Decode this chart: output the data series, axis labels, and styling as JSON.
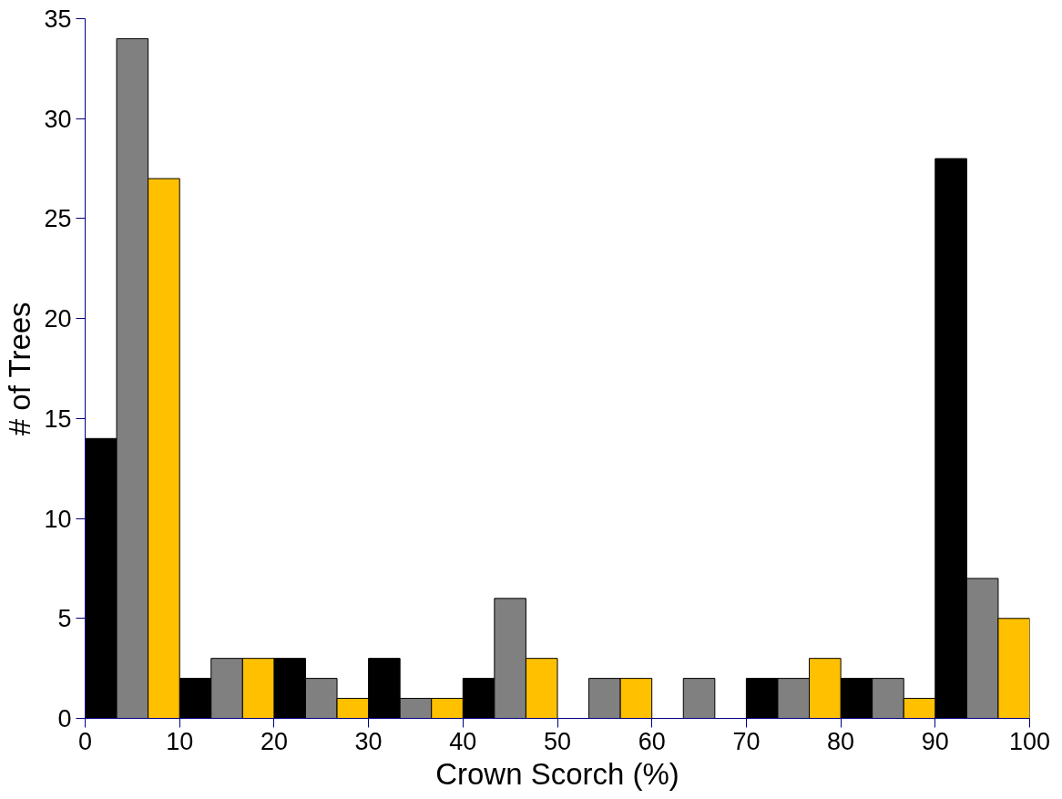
{
  "chart_data": {
    "type": "bar",
    "xlabel": "Crown Scorch (%)",
    "ylabel": "# of Trees",
    "x": [
      5,
      15,
      25,
      35,
      45,
      55,
      65,
      75,
      85,
      95
    ],
    "series": [
      {
        "color": "#000000",
        "values": [
          14,
          2,
          3,
          3,
          2,
          0,
          0,
          2,
          2,
          28
        ]
      },
      {
        "color": "#808080",
        "values": [
          34,
          3,
          2,
          1,
          6,
          2,
          2,
          2,
          2,
          7
        ]
      },
      {
        "color": "#ffc000",
        "values": [
          27,
          3,
          1,
          1,
          3,
          2,
          0,
          3,
          1,
          5
        ]
      }
    ],
    "xlim": [
      0,
      100
    ],
    "xticks": [
      0,
      10,
      20,
      30,
      40,
      50,
      60,
      70,
      80,
      90,
      100
    ],
    "ylim": [
      0,
      35
    ],
    "yticks": [
      0,
      5,
      10,
      15,
      20,
      25,
      30,
      35
    ],
    "grid": false
  }
}
